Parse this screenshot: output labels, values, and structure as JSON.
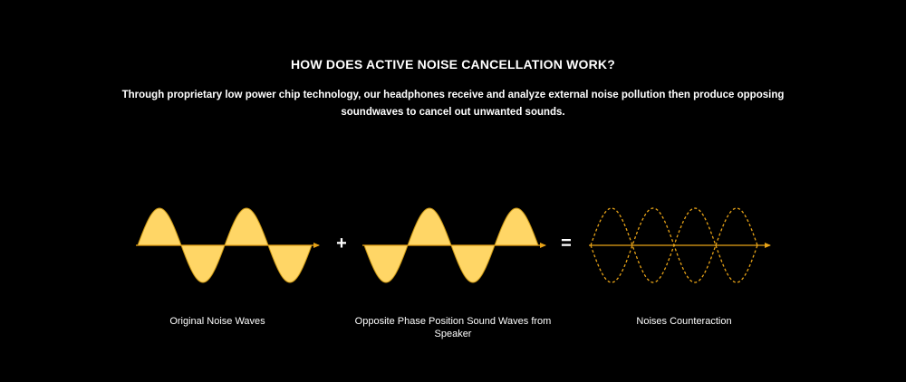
{
  "header": {
    "title": "HOW DOES ACTIVE NOISE CANCELLATION WORK?",
    "description": "Through proprietary low power chip technology, our headphones receive and analyze external noise pollution then produce opposing soundwaves to cancel out unwanted sounds."
  },
  "panels": [
    {
      "caption": "Original Noise Waves"
    },
    {
      "caption": "Opposite Phase Position Sound Waves from Speaker"
    },
    {
      "caption": "Noises Counteraction"
    }
  ],
  "operators": {
    "plus": "+",
    "equals": "="
  },
  "colors": {
    "wave_fill": "#ffd666",
    "wave_stroke": "#c99614",
    "axis": "#e8a317",
    "dashed": "#e8a317",
    "background": "#000000",
    "text": "#ffffff"
  }
}
